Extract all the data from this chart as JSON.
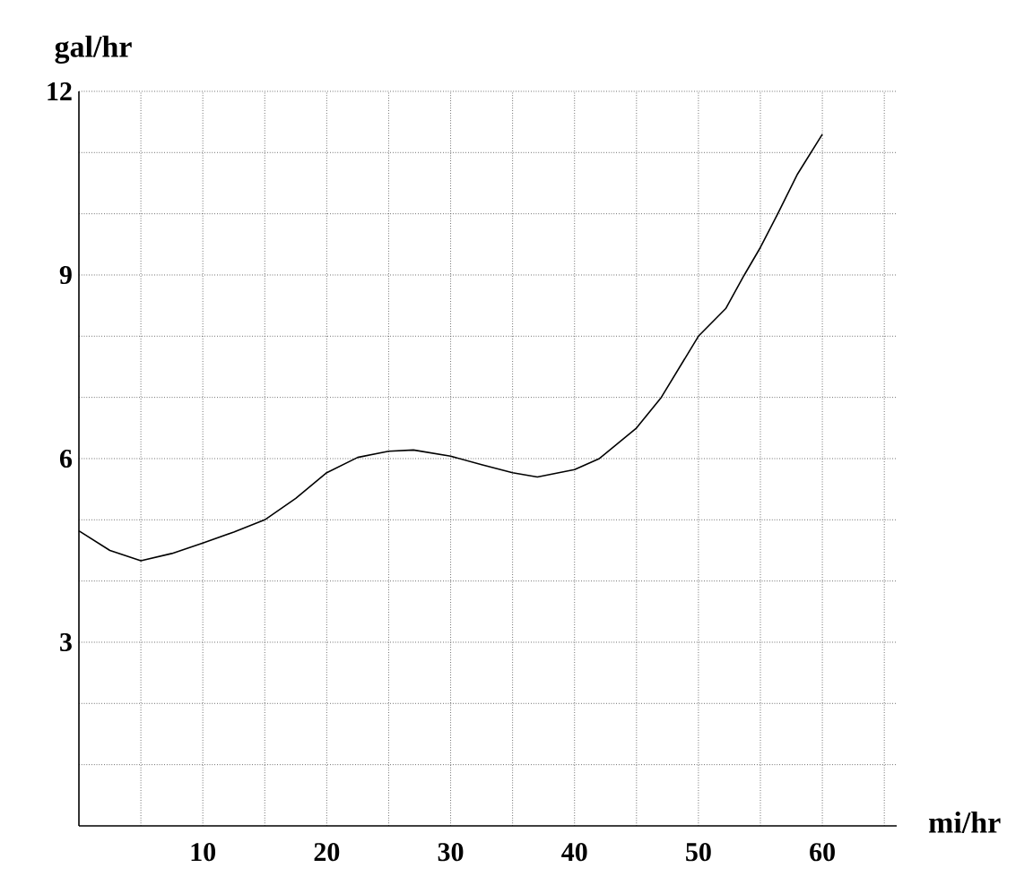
{
  "chart_data": {
    "type": "line",
    "xlabel": "mi/hr",
    "ylabel": "gal/hr",
    "color": "#000000",
    "grid": true,
    "marker": "none",
    "line_style": "solid",
    "x": [
      0,
      2.5,
      5,
      7.5,
      10,
      12.5,
      15,
      17.5,
      20,
      22.5,
      25,
      27,
      30,
      32.5,
      35,
      37,
      40,
      42,
      45,
      47,
      50,
      52.2,
      53.7,
      55,
      56.4,
      58,
      60
    ],
    "values": [
      4.82,
      4.5,
      4.33,
      4.45,
      4.62,
      4.8,
      5.0,
      5.35,
      5.77,
      6.02,
      6.12,
      6.14,
      6.04,
      5.9,
      5.77,
      5.7,
      5.82,
      6.0,
      6.5,
      7.0,
      8.0,
      8.45,
      9.0,
      9.45,
      10.0,
      10.65,
      11.3
    ],
    "xlim": [
      0,
      66
    ],
    "ylim": [
      0,
      12
    ],
    "xticks": [
      {
        "value": 5,
        "label": null
      },
      10,
      {
        "value": 15,
        "label": null
      },
      20,
      {
        "value": 25,
        "label": null
      },
      30,
      {
        "value": 35,
        "label": null
      },
      40,
      {
        "value": 45,
        "label": null
      },
      50,
      {
        "value": 55,
        "label": null
      },
      60,
      {
        "value": 65,
        "label": null
      }
    ],
    "yticks": [
      {
        "value": 1,
        "label": null
      },
      {
        "value": 2,
        "label": null
      },
      3,
      {
        "value": 4,
        "label": null
      },
      {
        "value": 5,
        "label": null
      },
      6,
      {
        "value": 7,
        "label": null
      },
      {
        "value": 8,
        "label": null
      },
      9,
      {
        "value": 10,
        "label": null
      },
      {
        "value": 11,
        "label": null
      },
      12
    ]
  }
}
